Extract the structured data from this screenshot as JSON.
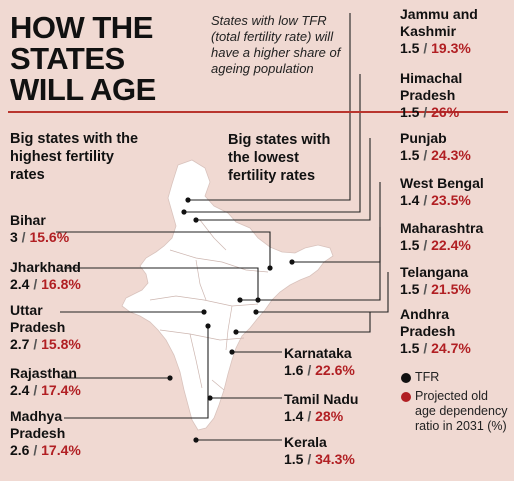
{
  "title": [
    "HOW THE",
    "STATES",
    "WILL AGE"
  ],
  "note": "States with low TFR (total fertility rate) will have a higher share of ageing population",
  "headers": {
    "high": "Big states with the highest fertility rates",
    "low": "Big states with the lowest fertility rates"
  },
  "separator": " / ",
  "colors": {
    "background": "#f0d9d2",
    "accent": "#b11f23",
    "rule": "#b9352e",
    "map": "#ffffff"
  },
  "high_states": [
    {
      "name": "Bihar",
      "tfr": "3",
      "odr": "15.6%"
    },
    {
      "name": "Jharkhand",
      "tfr": "2.4",
      "odr": "16.8%"
    },
    {
      "name": "Uttar Pradesh",
      "tfr": "2.7",
      "odr": "15.8%"
    },
    {
      "name": "Rajasthan",
      "tfr": "2.4",
      "odr": "17.4%"
    },
    {
      "name": "Madhya Pradesh",
      "tfr": "2.6",
      "odr": "17.4%"
    }
  ],
  "low_states": [
    {
      "name": "Jammu and Kashmir",
      "tfr": "1.5",
      "odr": "19.3%"
    },
    {
      "name": "Himachal Pradesh",
      "tfr": "1.5",
      "odr": "26%"
    },
    {
      "name": "Punjab",
      "tfr": "1.5",
      "odr": "24.3%"
    },
    {
      "name": "West Bengal",
      "tfr": "1.4",
      "odr": "23.5%"
    },
    {
      "name": "Maharashtra",
      "tfr": "1.5",
      "odr": "22.4%"
    },
    {
      "name": "Telangana",
      "tfr": "1.5",
      "odr": "21.5%"
    },
    {
      "name": "Andhra Pradesh",
      "tfr": "1.5",
      "odr": "24.7%"
    }
  ],
  "south_states": [
    {
      "name": "Karnataka",
      "tfr": "1.6",
      "odr": "22.6%"
    },
    {
      "name": "Tamil Nadu",
      "tfr": "1.4",
      "odr": "28%"
    },
    {
      "name": "Kerala",
      "tfr": "1.5",
      "odr": "34.3%"
    }
  ],
  "legend": {
    "tfr": "TFR",
    "odr": "Projected old age dependency ratio in 2031 (%)"
  }
}
